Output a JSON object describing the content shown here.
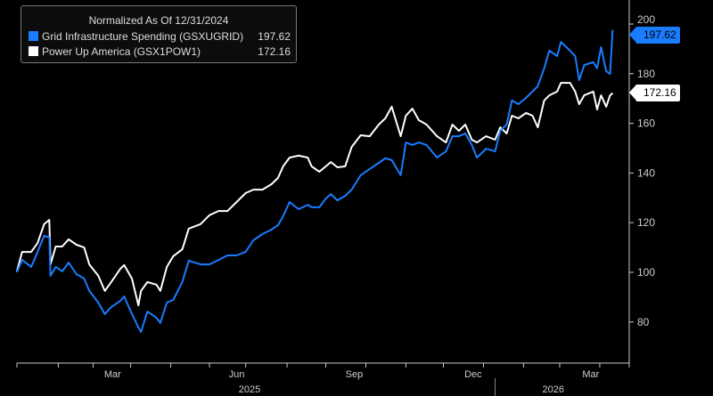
{
  "chart_data": {
    "type": "line",
    "title": "Normalized As Of 12/31/2024",
    "xlabel": "",
    "ylabel": "",
    "x_units": "days since 12/31/2024",
    "xlim": [
      0,
      462
    ],
    "ylim": [
      72,
      211
    ],
    "grid": false,
    "legend_position": "top-left",
    "y_ticks": [
      80,
      100,
      120,
      140,
      160,
      180,
      200
    ],
    "y_tick_labels": [
      "80",
      "100",
      "120",
      "140",
      "160",
      "180",
      "200"
    ],
    "x_month_ticks": [
      0,
      32,
      59,
      88,
      119,
      149,
      177,
      209,
      239,
      270,
      301,
      330,
      361,
      392,
      420,
      451
    ],
    "x_labels": [
      {
        "label": "Mar",
        "x": 74
      },
      {
        "label": "Jun",
        "x": 170
      },
      {
        "label": "Sep",
        "x": 261
      },
      {
        "label": "Dec",
        "x": 353
      },
      {
        "label": "Mar",
        "x": 444
      }
    ],
    "year_labels": [
      {
        "label": "2025",
        "x": 180
      },
      {
        "label": "2026",
        "x": 415
      }
    ],
    "year_divider_x": 370,
    "x": [
      0,
      4,
      11,
      16,
      21,
      25,
      26,
      30,
      35,
      40,
      46,
      52,
      56,
      63,
      68,
      73,
      80,
      83,
      89,
      94,
      96,
      101,
      108,
      111,
      116,
      121,
      128,
      133,
      142,
      149,
      156,
      163,
      170,
      177,
      183,
      190,
      197,
      202,
      206,
      211,
      218,
      225,
      228,
      234,
      239,
      243,
      248,
      254,
      259,
      266,
      273,
      280,
      285,
      290,
      297,
      301,
      306,
      311,
      317,
      325,
      332,
      337,
      342,
      347,
      352,
      356,
      363,
      370,
      374,
      379,
      383,
      388,
      394,
      399,
      403,
      408,
      412,
      418,
      421,
      428,
      432,
      435,
      439,
      446,
      449,
      452,
      456,
      459,
      461
    ],
    "series": [
      {
        "name": "Grid Infrastructure Spending (GSXUGRID)",
        "last_value": "197.62",
        "color": "#1a7cff",
        "values": [
          100,
          105.0,
          102.2,
          108.2,
          114.7,
          114.0,
          98.6,
          102.2,
          100.4,
          103.9,
          99.3,
          97.5,
          92.5,
          87.8,
          83.2,
          86.0,
          88.5,
          90.3,
          83.2,
          77.8,
          76.0,
          84.2,
          81.7,
          79.6,
          87.8,
          88.9,
          96.1,
          104.7,
          103.2,
          103.2,
          105.0,
          106.8,
          106.8,
          108.2,
          112.9,
          115.4,
          117.2,
          119.0,
          122.6,
          128.3,
          125.4,
          127.2,
          126.2,
          126.2,
          129.7,
          131.5,
          129.0,
          130.8,
          133.3,
          139.1,
          141.6,
          144.1,
          145.9,
          145.2,
          139.1,
          152.3,
          151.3,
          152.3,
          151.3,
          146.2,
          148.7,
          154.8,
          154.8,
          155.9,
          151.3,
          146.2,
          149.8,
          148.7,
          157.0,
          159.5,
          169.2,
          167.7,
          170.3,
          172.8,
          175.0,
          182.2,
          189.3,
          187.1,
          192.8,
          189.3,
          187.1,
          177.4,
          183.5,
          184.6,
          182.2,
          190.7,
          181.0,
          179.9,
          197.62
        ]
      },
      {
        "name": "Power Up America (GSX1POW1)",
        "last_value": "172.16",
        "color": "#ffffff",
        "values": [
          100.4,
          108.2,
          108.2,
          111.8,
          119.4,
          121.1,
          103.2,
          110.4,
          110.4,
          113.3,
          111.1,
          110.0,
          103.2,
          98.6,
          92.5,
          96.1,
          101.4,
          102.9,
          97.5,
          86.7,
          92.5,
          96.1,
          95.0,
          92.5,
          102.2,
          106.5,
          109.3,
          117.6,
          119.4,
          123.0,
          124.7,
          124.7,
          128.3,
          131.9,
          133.3,
          133.3,
          135.5,
          138.0,
          142.7,
          146.2,
          147.0,
          146.2,
          142.7,
          140.5,
          142.7,
          144.4,
          142.3,
          142.7,
          150.5,
          155.2,
          154.8,
          159.5,
          162.0,
          166.7,
          154.8,
          163.1,
          165.9,
          161.3,
          159.5,
          154.8,
          152.3,
          159.5,
          157.0,
          159.5,
          153.4,
          152.3,
          154.8,
          153.4,
          158.4,
          155.9,
          163.1,
          162.0,
          164.2,
          163.1,
          158.4,
          169.2,
          171.3,
          172.8,
          176.3,
          176.3,
          172.8,
          167.7,
          171.3,
          172.8,
          165.6,
          171.3,
          166.7,
          171.3,
          172.16
        ]
      }
    ]
  }
}
